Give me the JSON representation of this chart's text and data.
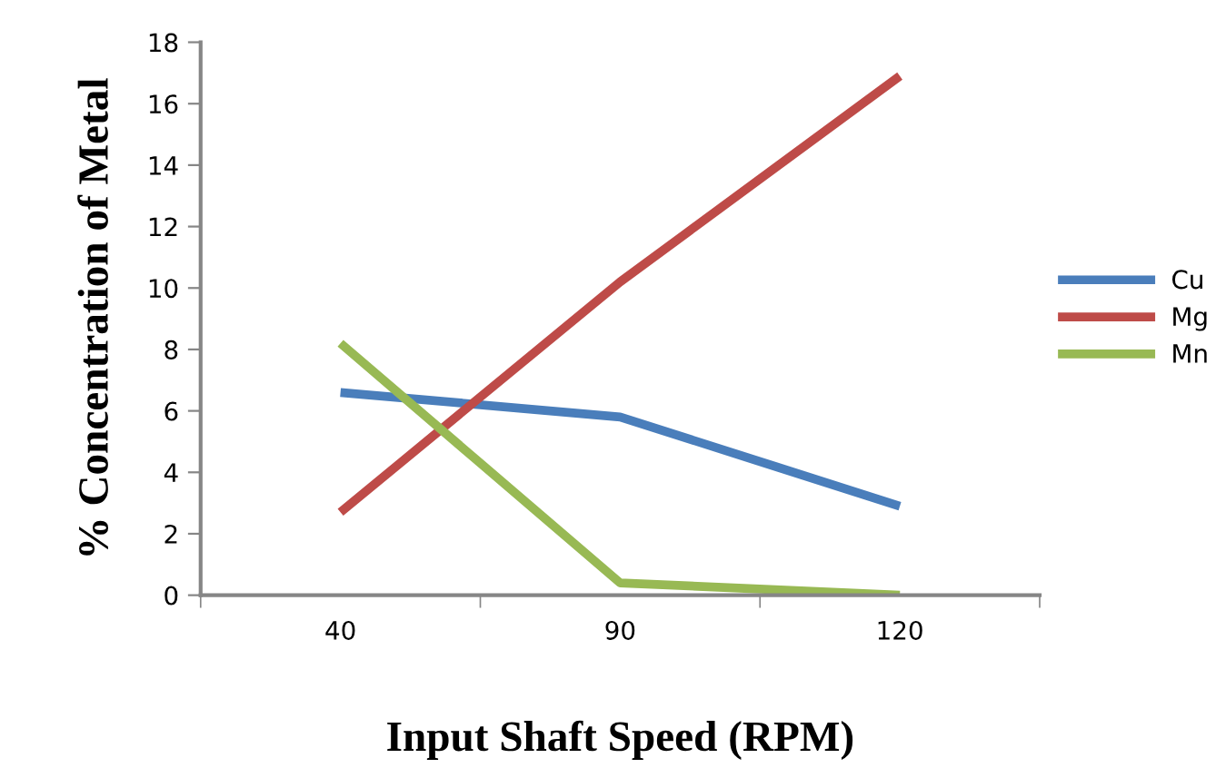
{
  "chart_data": {
    "type": "line",
    "xlabel": "Input Shaft Speed (RPM)",
    "ylabel": "% Concentration of Metal",
    "categories": [
      "40",
      "90",
      "120"
    ],
    "series": [
      {
        "name": "Cu",
        "color": "#4a7ebb",
        "values": [
          6.6,
          5.8,
          2.9
        ]
      },
      {
        "name": "Mg",
        "color": "#be4b48",
        "values": [
          2.7,
          10.2,
          16.9
        ]
      },
      {
        "name": "Mn",
        "color": "#98b954",
        "values": [
          8.2,
          0.4,
          0
        ]
      }
    ],
    "ylim": [
      0,
      18
    ],
    "yticks": [
      0,
      2,
      4,
      6,
      8,
      10,
      12,
      14,
      16,
      18
    ],
    "grid": false,
    "legend": "right",
    "marker": "none",
    "line_style": "solid"
  }
}
